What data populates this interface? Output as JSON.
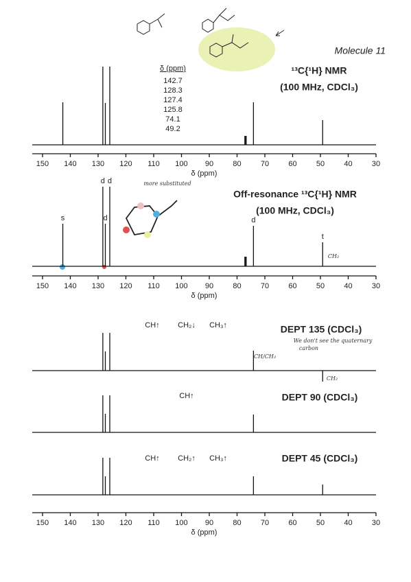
{
  "molecule_label": "Molecule 11",
  "chart_data": [
    {
      "type": "stem",
      "title": "¹³C{¹H} NMR",
      "subtitle": "(100 MHz, CDCl₃)",
      "peak_table": {
        "header": "δ (ppm)",
        "rows": [
          "142.7",
          "128.3",
          "127.4",
          "125.8",
          "74.1",
          "49.2"
        ]
      },
      "x": [
        142.7,
        128.3,
        127.4,
        125.8,
        77.2,
        77.0,
        76.7,
        74.1,
        49.2
      ],
      "values": [
        62,
        114,
        61,
        114,
        13,
        13,
        13,
        62,
        36
      ],
      "xlim": [
        153.7,
        30
      ],
      "xticks": [
        150,
        140,
        130,
        120,
        110,
        100,
        90,
        80,
        70,
        60,
        50,
        40,
        30
      ],
      "xlabel": "δ (ppm)"
    },
    {
      "type": "stem",
      "title": "Off-resonance ¹³C{¹H} NMR",
      "subtitle": "(100 MHz, CDCl₃)",
      "x": [
        142.7,
        128.3,
        127.4,
        125.8,
        77.2,
        77.0,
        76.7,
        74.1,
        49.2
      ],
      "values": [
        62,
        116,
        62,
        116,
        14,
        14,
        14,
        59,
        35
      ],
      "peak_labels": [
        "s",
        "d",
        "d",
        "d",
        null,
        null,
        null,
        "d",
        "t"
      ],
      "annotations": [
        "more substituted",
        "CH₂"
      ],
      "xlim": [
        153.7,
        30
      ],
      "xticks": [
        150,
        140,
        130,
        120,
        110,
        100,
        90,
        80,
        70,
        60,
        50,
        40,
        30
      ],
      "xlabel": "δ (ppm)"
    },
    {
      "type": "stem",
      "title": "DEPT 135 (CDCl₃)",
      "x": [
        128.3,
        127.4,
        125.8,
        74.1,
        49.2
      ],
      "values": [
        55,
        28,
        55,
        29,
        -16
      ],
      "annotations": [
        "CH↑",
        "CH₂↓",
        "CH₃↑",
        "We don't see the quaternary",
        "carbon",
        "CH/CH₃",
        "CH₂"
      ],
      "xlim": [
        153.7,
        30
      ]
    },
    {
      "type": "stem",
      "title": "DEPT 90 (CDCl₃)",
      "x": [
        128.3,
        127.4,
        125.8,
        74.1
      ],
      "values": [
        54,
        27,
        54,
        26
      ],
      "annotations": [
        "CH↑"
      ],
      "xlim": [
        153.7,
        30
      ]
    },
    {
      "type": "stem",
      "title": "DEPT 45 (CDCl₃)",
      "x": [
        128.3,
        127.4,
        125.8,
        74.1,
        49.2
      ],
      "values": [
        54,
        27,
        54,
        27,
        15
      ],
      "annotations": [
        "CH↑",
        "CH₂↑",
        "CH₃↑"
      ],
      "xlim": [
        153.7,
        30
      ],
      "xticks": [
        150,
        140,
        130,
        120,
        110,
        100,
        90,
        80,
        70,
        60,
        50,
        40,
        30
      ],
      "xlabel": "δ (ppm)"
    }
  ]
}
